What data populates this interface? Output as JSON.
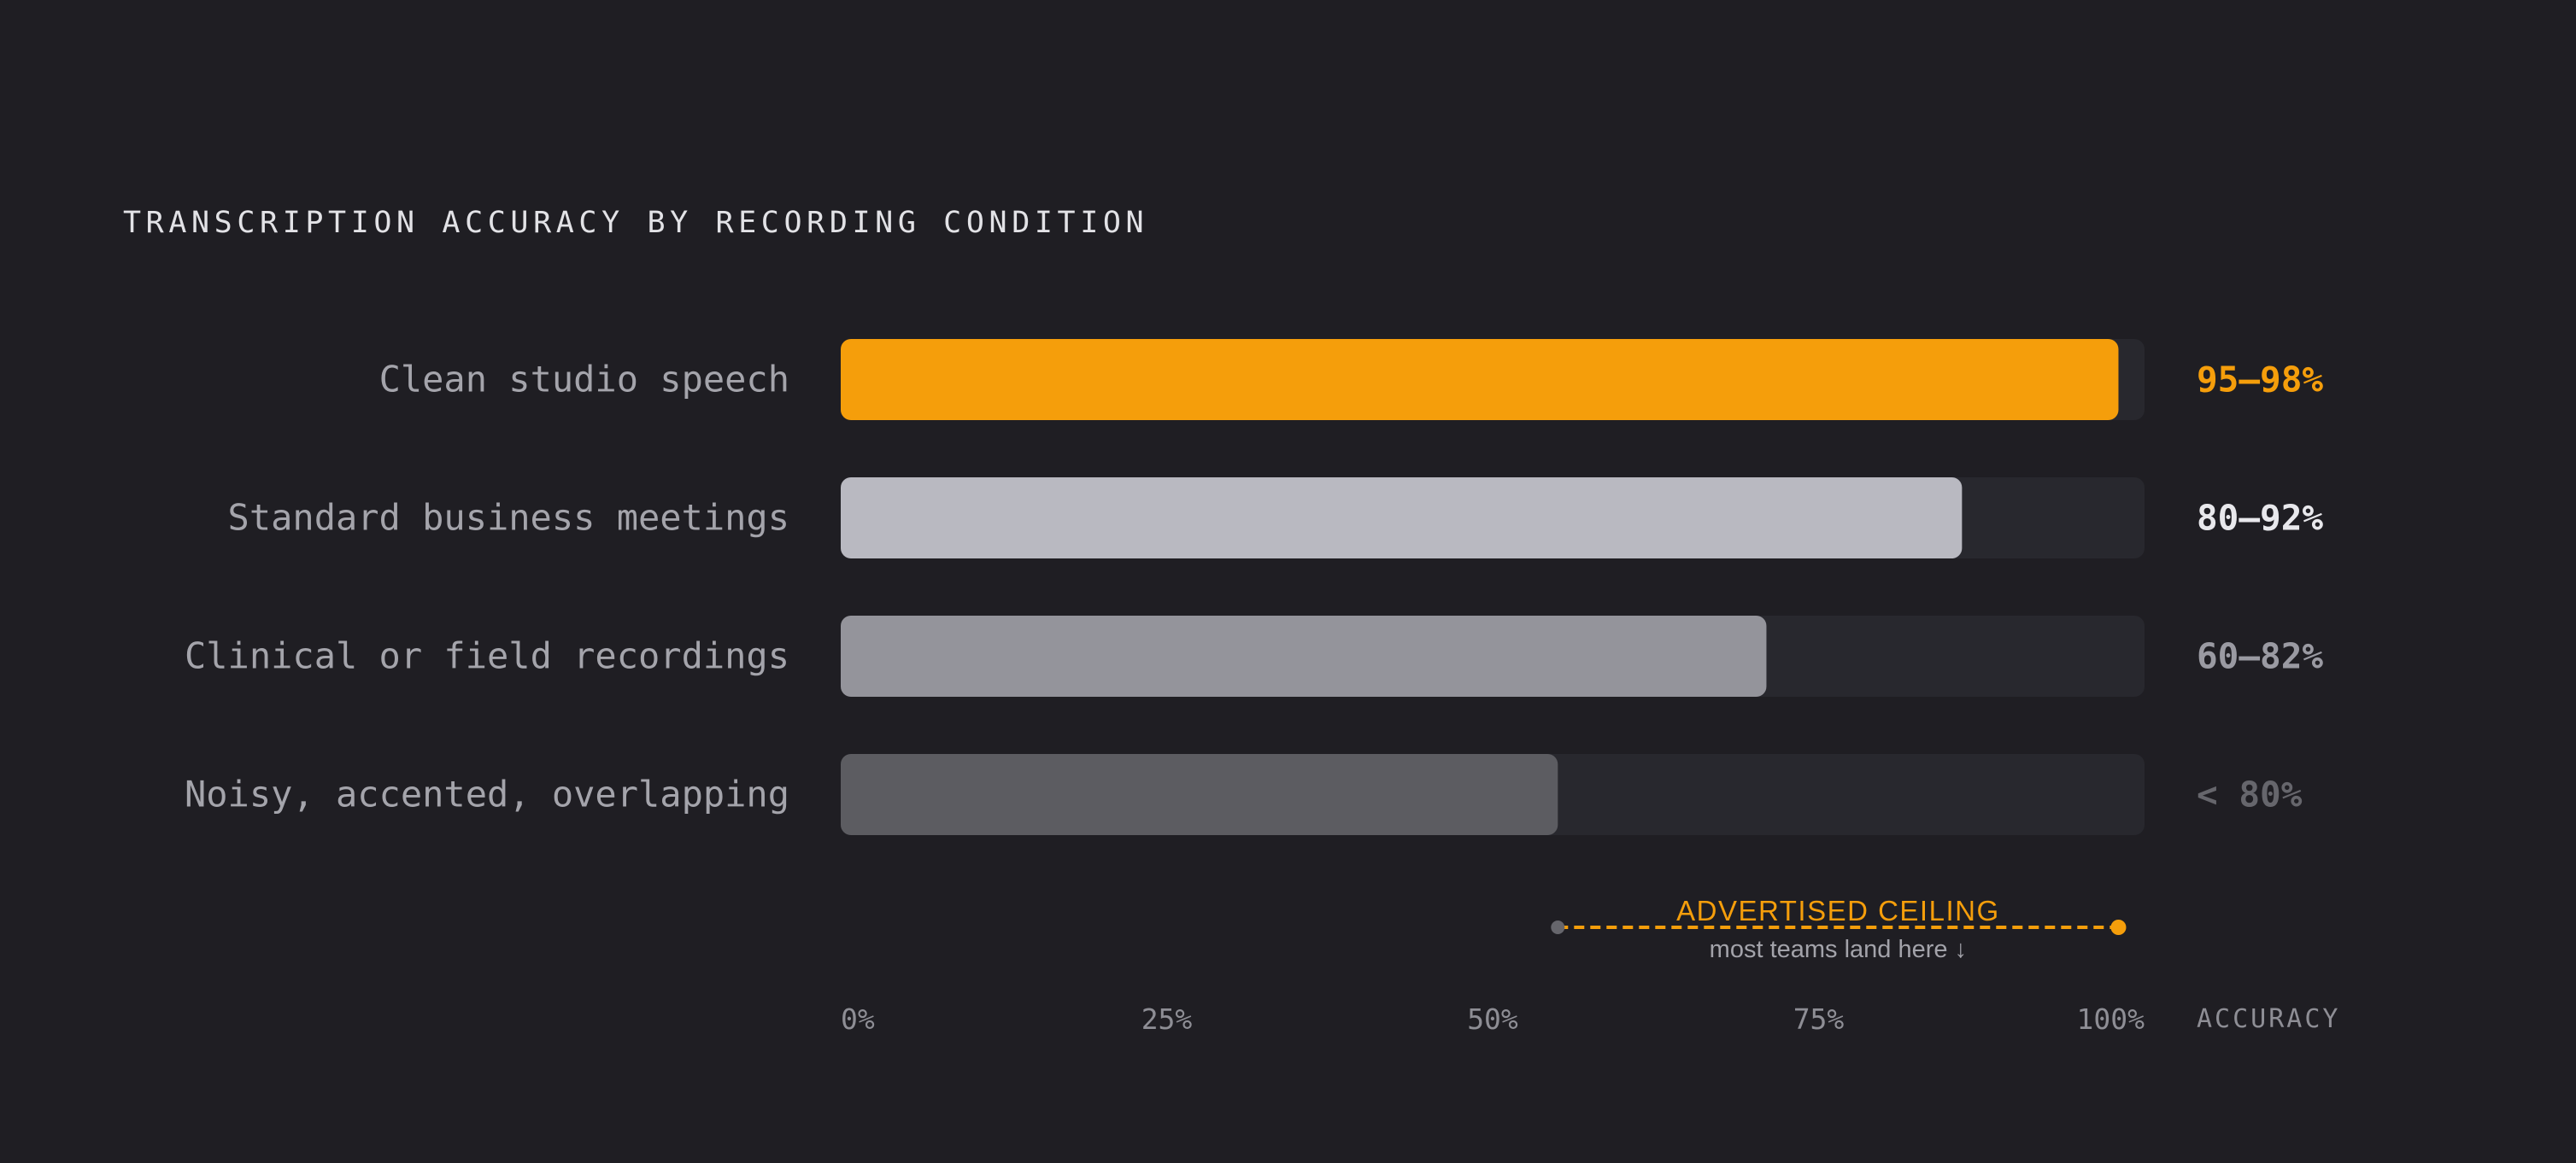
{
  "chart_data": {
    "type": "bar",
    "orientation": "horizontal",
    "title": "TRANSCRIPTION ACCURACY BY RECORDING CONDITION",
    "xlabel": "ACCURACY",
    "ylabel": "",
    "xlim": [
      0,
      100
    ],
    "x_ticks": [
      "0%",
      "25%",
      "50%",
      "75%",
      "100%"
    ],
    "grid": false,
    "legend": "none",
    "categories": [
      "Clean studio speech",
      "Standard business meetings",
      "Clinical or field recordings",
      "Noisy, accented, overlapping"
    ],
    "values": [
      98,
      86,
      71,
      55
    ],
    "value_labels": [
      "95–98%",
      "80–92%",
      "60–82%",
      "< 80%"
    ],
    "bar_colors": [
      "#f59e0b",
      "#b9b9c1",
      "#94949b",
      "#5c5c61"
    ],
    "label_colors": [
      "#f59e0b",
      "#e8e8ec",
      "#9a9aa2",
      "#66666c"
    ],
    "annotation": {
      "title": "ADVERTISED CEILING",
      "subtitle": "most teams land here ↓",
      "from": 55,
      "to": 98,
      "color": "#f59e0b"
    }
  }
}
